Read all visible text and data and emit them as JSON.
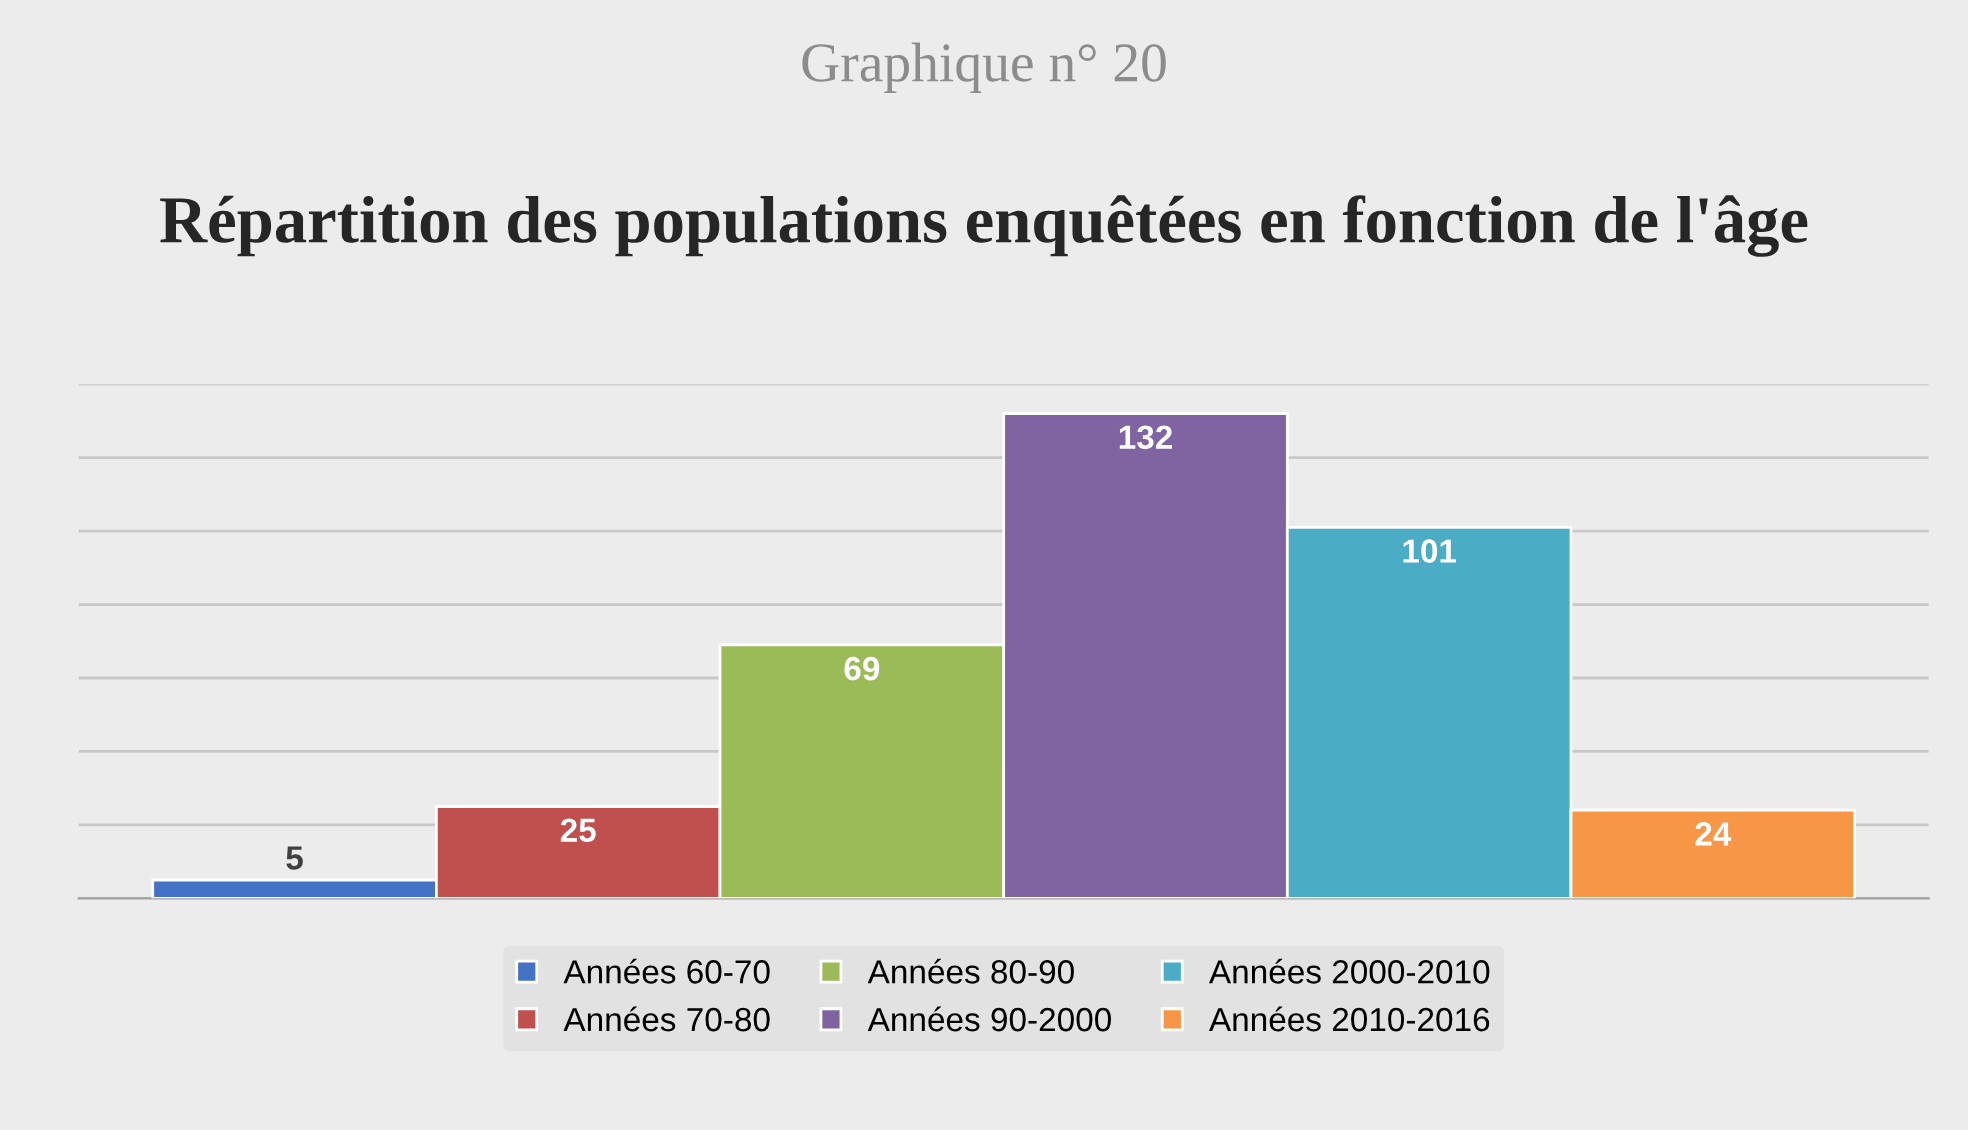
{
  "chart_data": {
    "type": "bar",
    "subtitle": "Graphique n° 20",
    "title": "Répartition des populations enquêtées en fonction de l'âge",
    "categories": [
      null
    ],
    "series": [
      {
        "name": "Années 60-70",
        "color": "#4472c4",
        "values": [
          5
        ]
      },
      {
        "name": "Années 70-80",
        "color": "#c0504d",
        "values": [
          25
        ]
      },
      {
        "name": "Années 80-90",
        "color": "#9bbb59",
        "values": [
          69
        ]
      },
      {
        "name": "Années 90-2000",
        "color": "#8064a2",
        "values": [
          132
        ]
      },
      {
        "name": "Années 2000-2010",
        "color": "#4bacc6",
        "values": [
          101
        ]
      },
      {
        "name": "Années 2010-2016",
        "color": "#f79646",
        "values": [
          24
        ]
      }
    ],
    "ylim": [
      0,
      140
    ],
    "yticks": [
      {
        "value": 0,
        "label": null
      },
      {
        "value": 20,
        "label": null
      },
      {
        "value": 40,
        "label": null
      },
      {
        "value": 60,
        "label": null
      },
      {
        "value": 80,
        "label": null
      },
      {
        "value": 100,
        "label": null
      },
      {
        "value": 120,
        "label": null
      },
      {
        "value": 140,
        "label": null
      }
    ],
    "grid": "y",
    "legend": "bottom",
    "data_labels": true
  }
}
